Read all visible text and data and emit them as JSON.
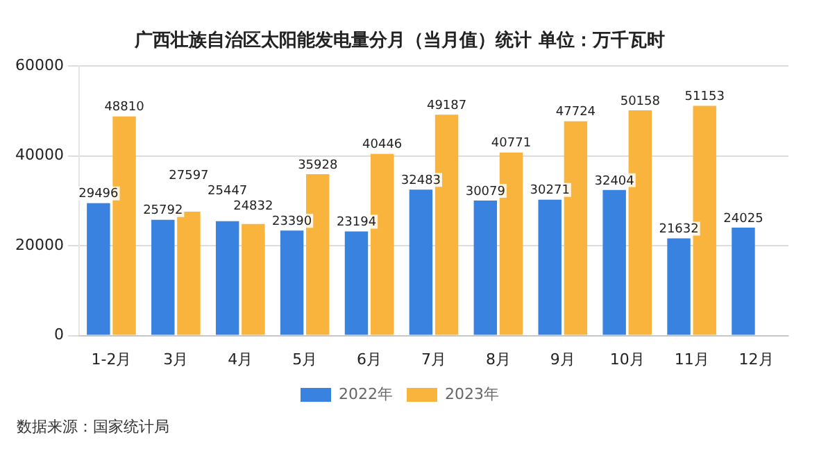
{
  "chart_data": {
    "type": "bar",
    "title": "广西壮族自治区太阳能发电量分月（当月值）统计 单位：万千瓦时",
    "categories": [
      "1-2月",
      "3月",
      "4月",
      "5月",
      "6月",
      "7月",
      "8月",
      "9月",
      "10月",
      "11月",
      "12月"
    ],
    "series": [
      {
        "name": "2022年",
        "color": "#3a82e0",
        "values": [
          29496,
          25792,
          25447,
          23390,
          23194,
          32483,
          30079,
          30271,
          32404,
          21632,
          24025
        ]
      },
      {
        "name": "2023年",
        "color": "#f8b43c",
        "values": [
          48810,
          27597,
          24832,
          35928,
          40446,
          49187,
          40771,
          47724,
          50158,
          51153,
          null
        ]
      }
    ],
    "ylim": [
      0,
      60000
    ],
    "yticks": [
      0,
      20000,
      40000,
      60000
    ],
    "grid": "y",
    "legend": "bottom",
    "data_labels": true,
    "annotations": [
      "数据来源：国家统计局"
    ]
  }
}
